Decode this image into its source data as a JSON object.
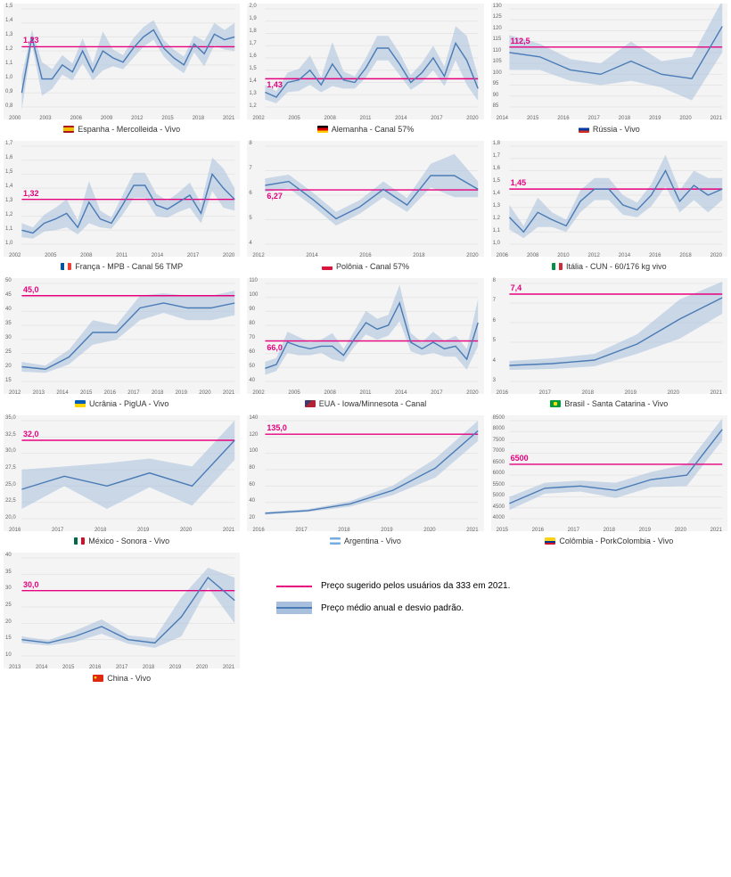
{
  "global": {
    "line_color": "#4a7bb5",
    "band_color": "#a8c0dd",
    "band_opacity": 0.55,
    "ref_color": "#e6007e",
    "grid_color": "#e6e6e6",
    "bg_color": "#f4f4f4",
    "text_color": "#333333",
    "caption_fontsize": 9,
    "reflabel_fontsize": 9,
    "line_width": 1.4
  },
  "legend": {
    "ref_label": "Preço sugerido pelos usuários da 333 em 2021.",
    "band_label": "Preço médio anual e desvio padrão."
  },
  "charts": [
    {
      "id": "spain",
      "caption": "Espanha - Mercolleida - Vivo",
      "flag_css": "linear-gradient(to bottom,#aa151b 25%,#f1bf00 25% 75%,#aa151b 75%)",
      "ref_value": 1.23,
      "ref_label": "1,23",
      "ref_label_pos": "left",
      "ymin": 0.8,
      "ymax": 1.5,
      "yticks": [
        "0,8",
        "0,9",
        "1,0",
        "1,1",
        "1,2",
        "1,3",
        "1,4",
        "1,5"
      ],
      "xticks": [
        "2000",
        "2003",
        "2006",
        "2009",
        "2012",
        "2015",
        "2018",
        "2021"
      ],
      "x": [
        2000,
        2001,
        2002,
        2003,
        2004,
        2005,
        2006,
        2007,
        2008,
        2009,
        2010,
        2011,
        2012,
        2013,
        2014,
        2015,
        2016,
        2017,
        2018,
        2019,
        2020,
        2021
      ],
      "y": [
        0.9,
        1.3,
        1.0,
        1.0,
        1.1,
        1.05,
        1.2,
        1.05,
        1.2,
        1.15,
        1.12,
        1.22,
        1.3,
        1.35,
        1.22,
        1.15,
        1.1,
        1.25,
        1.18,
        1.32,
        1.28,
        1.3
      ],
      "band": [
        0.12,
        0.05,
        0.12,
        0.07,
        0.07,
        0.06,
        0.09,
        0.06,
        0.14,
        0.06,
        0.05,
        0.07,
        0.07,
        0.07,
        0.06,
        0.06,
        0.06,
        0.06,
        0.09,
        0.08,
        0.07,
        0.1
      ]
    },
    {
      "id": "germany",
      "caption": "Alemanha - Canal 57%",
      "flag_css": "linear-gradient(to bottom,#000 33%,#dd0000 33% 66%,#ffce00 66%)",
      "ref_value": 1.43,
      "ref_label": "1,43",
      "ref_label_pos": "left-low",
      "ymin": 1.2,
      "ymax": 2.0,
      "yticks": [
        "1,2",
        "1,3",
        "1,4",
        "1,5",
        "1,6",
        "1,7",
        "1,8",
        "1,9",
        "2,0"
      ],
      "xticks": [
        "2002",
        "2005",
        "2008",
        "2011",
        "2014",
        "2017",
        "2020"
      ],
      "x": [
        2002,
        2003,
        2004,
        2005,
        2006,
        2007,
        2008,
        2009,
        2010,
        2011,
        2012,
        2013,
        2014,
        2015,
        2016,
        2017,
        2018,
        2019,
        2020,
        2021
      ],
      "y": [
        1.32,
        1.28,
        1.4,
        1.42,
        1.5,
        1.38,
        1.55,
        1.42,
        1.4,
        1.52,
        1.68,
        1.68,
        1.55,
        1.4,
        1.48,
        1.6,
        1.45,
        1.72,
        1.58,
        1.35
      ],
      "band": [
        0.06,
        0.05,
        0.08,
        0.09,
        0.12,
        0.06,
        0.18,
        0.07,
        0.05,
        0.08,
        0.1,
        0.1,
        0.09,
        0.06,
        0.08,
        0.1,
        0.08,
        0.14,
        0.2,
        0.1
      ]
    },
    {
      "id": "russia",
      "caption": "Rússia - Vivo",
      "flag_css": "linear-gradient(to bottom,#fff 33%,#0039a6 33% 66%,#d52b1e 66%)",
      "ref_value": 112.5,
      "ref_label": "112,5",
      "ref_label_pos": "left",
      "ymin": 85,
      "ymax": 130,
      "yticks": [
        "85",
        "90",
        "95",
        "100",
        "105",
        "110",
        "115",
        "120",
        "125",
        "130"
      ],
      "xticks": [
        "2014",
        "2015",
        "2016",
        "2017",
        "2018",
        "2019",
        "2020",
        "2021"
      ],
      "x": [
        2014,
        2015,
        2016,
        2017,
        2018,
        2019,
        2020,
        2021
      ],
      "y": [
        110,
        108,
        102,
        100,
        106,
        100,
        98,
        122
      ],
      "band": [
        8,
        6,
        5,
        5,
        9,
        6,
        10,
        12
      ]
    },
    {
      "id": "france",
      "caption": "França - MPB - Canal 56 TMP",
      "flag_css": "linear-gradient(to right,#0055a4 33%,#fff 33% 66%,#ef4135 66%)",
      "ref_value": 1.32,
      "ref_label": "1,32",
      "ref_label_pos": "left",
      "ymin": 1.0,
      "ymax": 1.7,
      "yticks": [
        "1,0",
        "1,1",
        "1,2",
        "1,3",
        "1,4",
        "1,5",
        "1,6",
        "1,7"
      ],
      "xticks": [
        "2002",
        "2005",
        "2008",
        "2011",
        "2014",
        "2017",
        "2020"
      ],
      "x": [
        2002,
        2003,
        2004,
        2005,
        2006,
        2007,
        2008,
        2009,
        2010,
        2011,
        2012,
        2013,
        2014,
        2015,
        2016,
        2017,
        2018,
        2019,
        2020,
        2021
      ],
      "y": [
        1.1,
        1.08,
        1.15,
        1.18,
        1.22,
        1.12,
        1.3,
        1.18,
        1.15,
        1.28,
        1.42,
        1.42,
        1.28,
        1.25,
        1.3,
        1.35,
        1.22,
        1.5,
        1.4,
        1.32
      ],
      "band": [
        0.05,
        0.04,
        0.06,
        0.08,
        0.1,
        0.05,
        0.15,
        0.06,
        0.04,
        0.07,
        0.09,
        0.09,
        0.08,
        0.06,
        0.07,
        0.09,
        0.07,
        0.12,
        0.14,
        0.08
      ]
    },
    {
      "id": "poland",
      "caption": "Polônia - Canal 57%",
      "flag_css": "linear-gradient(to bottom,#fff 50%,#dc143c 50%)",
      "ref_value": 6.27,
      "ref_label": "6,27",
      "ref_label_pos": "left-low",
      "ymin": 3.5,
      "ymax": 8.5,
      "yticks": [
        "4",
        "5",
        "6",
        "7",
        "8"
      ],
      "xticks": [
        "2012",
        "2014",
        "2016",
        "2018",
        "2020"
      ],
      "x": [
        2012,
        2013,
        2014,
        2015,
        2016,
        2017,
        2018,
        2019,
        2020,
        2021
      ],
      "y": [
        6.5,
        6.7,
        5.8,
        4.8,
        5.4,
        6.3,
        5.5,
        7.0,
        7.0,
        6.3
      ],
      "band": [
        0.35,
        0.35,
        0.35,
        0.35,
        0.35,
        0.4,
        0.35,
        0.6,
        1.1,
        0.4
      ]
    },
    {
      "id": "italy",
      "caption": "Itália - CUN - 60/176 kg vivo",
      "flag_css": "linear-gradient(to right,#009246 33%,#fff 33% 66%,#ce2b37 66%)",
      "ref_value": 1.45,
      "ref_label": "1,45",
      "ref_label_pos": "left",
      "ymin": 1.0,
      "ymax": 1.8,
      "yticks": [
        "1,0",
        "1,1",
        "1,2",
        "1,3",
        "1,4",
        "1,5",
        "1,6",
        "1,7",
        "1,8"
      ],
      "xticks": [
        "2006",
        "2008",
        "2010",
        "2012",
        "2014",
        "2016",
        "2018",
        "2020"
      ],
      "x": [
        2006,
        2007,
        2008,
        2009,
        2010,
        2011,
        2012,
        2013,
        2014,
        2015,
        2016,
        2017,
        2018,
        2019,
        2020,
        2021
      ],
      "y": [
        1.22,
        1.1,
        1.26,
        1.2,
        1.15,
        1.35,
        1.45,
        1.45,
        1.32,
        1.28,
        1.4,
        1.6,
        1.35,
        1.48,
        1.4,
        1.45
      ],
      "band": [
        0.1,
        0.05,
        0.12,
        0.06,
        0.05,
        0.09,
        0.09,
        0.09,
        0.08,
        0.06,
        0.09,
        0.13,
        0.09,
        0.12,
        0.14,
        0.09
      ]
    },
    {
      "id": "ukraine",
      "caption": "Ucrânia - PigUA - Vivo",
      "flag_css": "linear-gradient(to bottom,#005bbb 50%,#ffd500 50%)",
      "ref_value": 45.0,
      "ref_label": "45,0",
      "ref_label_pos": "left",
      "ymin": 10,
      "ymax": 50,
      "yticks": [
        "15",
        "20",
        "25",
        "30",
        "35",
        "40",
        "45",
        "50"
      ],
      "xticks": [
        "2012",
        "2013",
        "2014",
        "2015",
        "2016",
        "2017",
        "2018",
        "2019",
        "2020",
        "2021"
      ],
      "x": [
        2012,
        2013,
        2014,
        2015,
        2016,
        2017,
        2018,
        2019,
        2020,
        2021
      ],
      "y": [
        16,
        15,
        20,
        30,
        30,
        40,
        42,
        40,
        40,
        42
      ],
      "band": [
        2,
        1.5,
        3,
        5,
        3,
        5,
        4,
        5,
        5,
        5
      ]
    },
    {
      "id": "usa",
      "caption": "EUA - Iowa/Minnesota - Canal",
      "flag_css": "linear-gradient(135deg,#3c3b6e 40%,#b22234 40%)",
      "ref_value": 66.0,
      "ref_label": "66,0",
      "ref_label_pos": "left-low",
      "ymin": 35,
      "ymax": 110,
      "yticks": [
        "40",
        "50",
        "60",
        "70",
        "80",
        "90",
        "100",
        "110"
      ],
      "xticks": [
        "2002",
        "2005",
        "2008",
        "2011",
        "2014",
        "2017",
        "2020"
      ],
      "x": [
        2002,
        2003,
        2004,
        2005,
        2006,
        2007,
        2008,
        2009,
        2010,
        2011,
        2012,
        2013,
        2014,
        2015,
        2016,
        2017,
        2018,
        2019,
        2020,
        2021
      ],
      "y": [
        45,
        48,
        65,
        62,
        60,
        62,
        62,
        55,
        68,
        80,
        75,
        78,
        95,
        65,
        60,
        65,
        60,
        62,
        52,
        80
      ],
      "band": [
        5,
        5,
        8,
        7,
        5,
        5,
        10,
        5,
        6,
        9,
        8,
        8,
        14,
        7,
        5,
        8,
        6,
        8,
        8,
        18
      ]
    },
    {
      "id": "brazil",
      "caption": "Brasil - Santa Catarina - Vivo",
      "flag_css": "radial-gradient(circle at center,#ffdf00 30%,#009b3a 32%)",
      "ref_value": 7.4,
      "ref_label": "7,4",
      "ref_label_pos": "left",
      "ymin": 2.5,
      "ymax": 8.0,
      "yticks": [
        "3",
        "4",
        "5",
        "6",
        "7",
        "8"
      ],
      "xticks": [
        "2016",
        "2017",
        "2018",
        "2019",
        "2020",
        "2021"
      ],
      "x": [
        2016,
        2017,
        2018,
        2019,
        2020,
        2021
      ],
      "y": [
        3.4,
        3.5,
        3.7,
        4.6,
        6.0,
        7.2
      ],
      "band": [
        0.25,
        0.3,
        0.35,
        0.55,
        1.1,
        0.9
      ]
    },
    {
      "id": "mexico",
      "caption": "México - Sonora - Vivo",
      "flag_css": "linear-gradient(to right,#006847 33%,#fff 33% 66%,#ce1126 66%)",
      "ref_value": 32.0,
      "ref_label": "32,0",
      "ref_label_pos": "left",
      "ymin": 20,
      "ymax": 35,
      "yticks": [
        "20,0",
        "22,5",
        "25,0",
        "27,5",
        "30,0",
        "32,5",
        "35,0"
      ],
      "xticks": [
        "2016",
        "2017",
        "2018",
        "2019",
        "2020",
        "2021"
      ],
      "x": [
        2016,
        2017,
        2018,
        2019,
        2020,
        2021
      ],
      "y": [
        24.5,
        26.5,
        25.0,
        27.0,
        25.0,
        32.0
      ],
      "band": [
        3.0,
        1.5,
        3.5,
        2.2,
        3.0,
        3.0
      ]
    },
    {
      "id": "argentina",
      "caption": "Argentina - Vivo",
      "flag_css": "linear-gradient(to bottom,#74acdf 33%,#fff 33% 66%,#74acdf 66%)",
      "ref_value": 135.0,
      "ref_label": "135,0",
      "ref_label_pos": "left",
      "ymin": 10,
      "ymax": 155,
      "yticks": [
        "20",
        "40",
        "60",
        "80",
        "100",
        "120",
        "140"
      ],
      "xticks": [
        "2016",
        "2017",
        "2018",
        "2019",
        "2020",
        "2021"
      ],
      "x": [
        2016,
        2017,
        2018,
        2019,
        2020,
        2021
      ],
      "y": [
        18,
        22,
        32,
        52,
        85,
        140
      ],
      "band": [
        2,
        2,
        4,
        7,
        14,
        15
      ]
    },
    {
      "id": "colombia",
      "caption": "Colômbia - PorkColombia - Vivo",
      "flag_css": "linear-gradient(to bottom,#fcd116 50%,#003893 50% 75%,#ce1126 75%)",
      "ref_value": 6500,
      "ref_label": "6500",
      "ref_label_pos": "left",
      "ymin": 4000,
      "ymax": 8500,
      "yticks": [
        "4000",
        "4500",
        "5000",
        "5500",
        "6000",
        "6500",
        "7000",
        "7500",
        "8000",
        "8500"
      ],
      "xticks": [
        "2015",
        "2016",
        "2017",
        "2018",
        "2019",
        "2020",
        "2021"
      ],
      "x": [
        2015,
        2016,
        2017,
        2018,
        2019,
        2020,
        2021
      ],
      "y": [
        4700,
        5400,
        5500,
        5300,
        5800,
        6000,
        8100
      ],
      "band": [
        300,
        250,
        250,
        350,
        350,
        500,
        500
      ]
    },
    {
      "id": "china",
      "caption": "China - Vivo",
      "flag_css": "radial-gradient(circle at 25% 40%,#ffde00 12%,#de2910 14%)",
      "ref_value": 30.0,
      "ref_label": "30,0",
      "ref_label_pos": "left",
      "ymin": 10,
      "ymax": 40,
      "yticks": [
        "10",
        "15",
        "20",
        "25",
        "30",
        "35",
        "40"
      ],
      "xticks": [
        "2013",
        "2014",
        "2015",
        "2016",
        "2017",
        "2018",
        "2019",
        "2020",
        "2021"
      ],
      "x": [
        2013,
        2014,
        2015,
        2016,
        2017,
        2018,
        2019,
        2020,
        2021
      ],
      "y": [
        15,
        14,
        16,
        19,
        15,
        14,
        22,
        34,
        27
      ],
      "band": [
        1.0,
        0.8,
        1.7,
        2.2,
        1.3,
        1.5,
        6.0,
        3.0,
        7.0
      ]
    }
  ]
}
